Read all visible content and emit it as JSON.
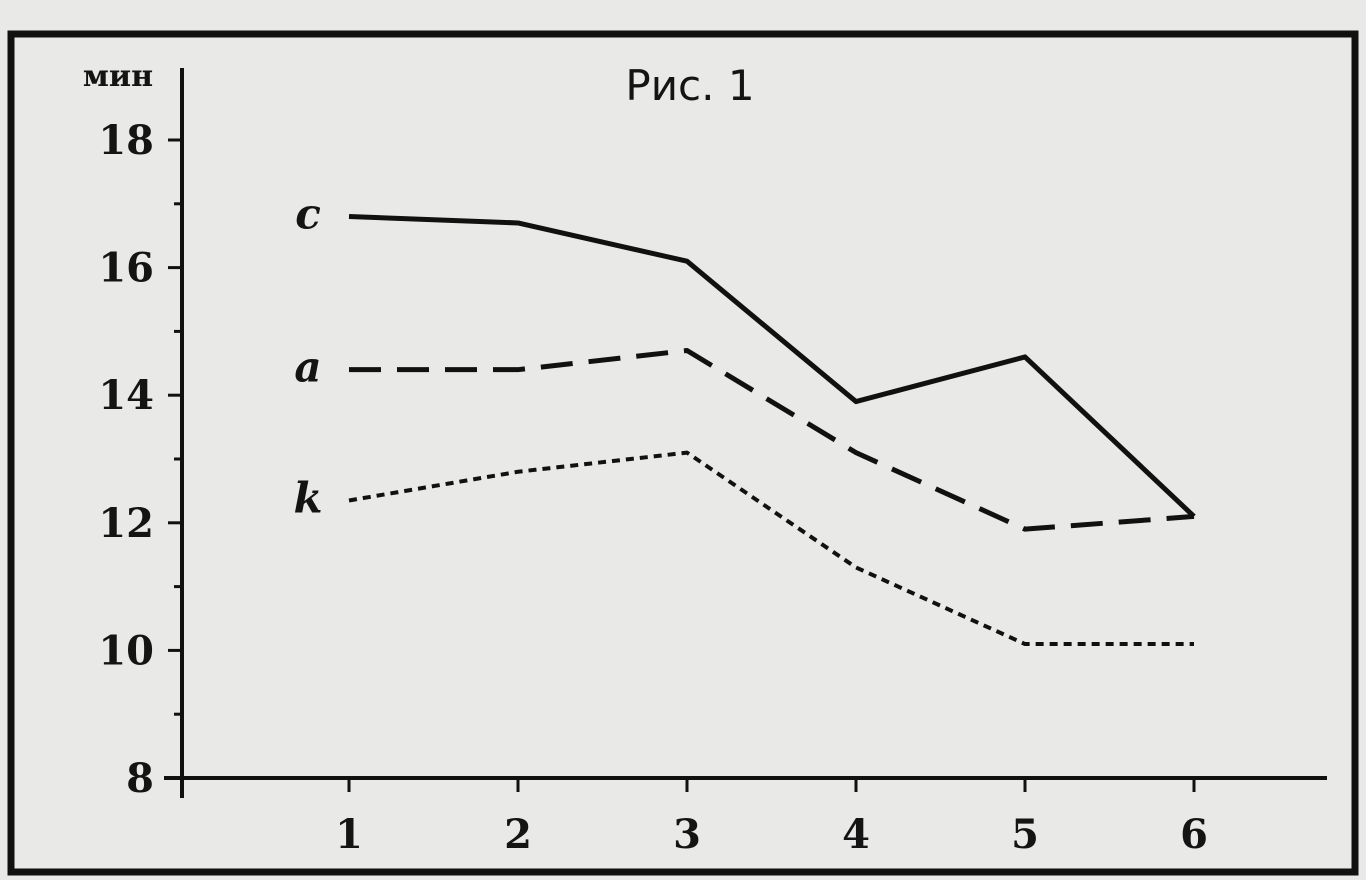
{
  "chart_data": {
    "type": "line",
    "title": "Рис. 1",
    "ylabel": "мин",
    "xlabel": "",
    "x": [
      1,
      2,
      3,
      4,
      5,
      6
    ],
    "xticks": [
      "1",
      "2",
      "3",
      "4",
      "5",
      "6"
    ],
    "ylim": [
      8,
      19
    ],
    "yticks": [
      "8",
      "10",
      "12",
      "14",
      "16",
      "18"
    ],
    "grid": false,
    "series": [
      {
        "name": "c",
        "style": "solid",
        "values": [
          16.8,
          16.7,
          16.1,
          13.9,
          14.6,
          12.1
        ]
      },
      {
        "name": "a",
        "style": "dashed",
        "values": [
          14.4,
          14.4,
          14.7,
          13.1,
          11.9,
          12.1
        ]
      },
      {
        "name": "k",
        "style": "dotted",
        "values": [
          12.35,
          12.8,
          13.1,
          11.3,
          10.1,
          10.1
        ]
      }
    ]
  }
}
